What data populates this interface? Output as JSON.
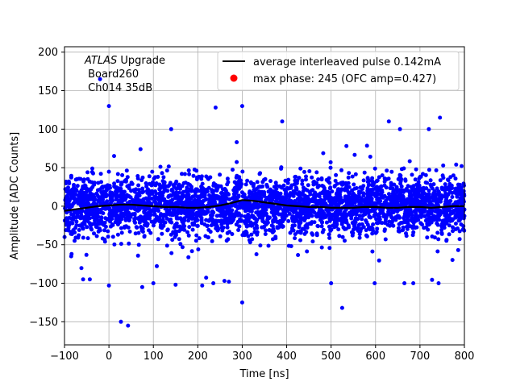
{
  "chart_data": {
    "type": "scatter",
    "xlabel": "Time [ns]",
    "ylabel": "Amplitude [ADC Counts]",
    "xlim": [
      -100,
      800
    ],
    "ylim": [
      -180,
      207
    ],
    "grid": true,
    "x_ticks": [
      -100,
      0,
      100,
      200,
      300,
      400,
      500,
      600,
      700,
      800
    ],
    "y_ticks": [
      -150,
      -100,
      -50,
      0,
      50,
      100,
      150,
      200
    ],
    "x_tick_labels": [
      "−100",
      "0",
      "100",
      "200",
      "300",
      "400",
      "500",
      "600",
      "700",
      "800"
    ],
    "y_tick_labels": [
      "−150",
      "−100",
      "−50",
      "0",
      "50",
      "100",
      "150",
      "200"
    ],
    "annotation": {
      "italic": "ATLAS",
      "rest": " Upgrade",
      "line2": " Board260",
      "line3": " Ch014 35dB"
    },
    "legend_position": "upper-right",
    "series": [
      {
        "name": "average interleaved pulse 0.142mA",
        "kind": "line",
        "color": "#000000",
        "x": [
          -100,
          -75,
          -50,
          -25,
          0,
          25,
          50,
          75,
          100,
          125,
          150,
          175,
          200,
          225,
          250,
          275,
          300,
          325,
          350,
          375,
          400,
          425,
          450,
          475,
          500,
          525,
          550,
          575,
          600,
          625,
          650,
          675,
          700,
          725,
          750,
          775,
          800
        ],
        "y": [
          -6,
          -4,
          -2,
          0,
          1,
          2,
          2,
          1,
          0,
          -1,
          -1,
          -2,
          -2,
          -1,
          1,
          4,
          8,
          7,
          5,
          3,
          1,
          0,
          -1,
          -1,
          -2,
          -2,
          -2,
          -1,
          -1,
          -2,
          -2,
          -1,
          -1,
          -2,
          -1,
          0,
          0
        ]
      },
      {
        "name": "max phase: 245 (OFC amp=0.427)",
        "kind": "scatter",
        "color": "#0000ff",
        "legend_color": "#ff0000",
        "description": "dense noise band, ~N(0, 18) clipped, with sparse outliers",
        "outliers": [
          [
            -20,
            165
          ],
          [
            0,
            130
          ],
          [
            27,
            -150
          ],
          [
            43,
            -155
          ],
          [
            -58,
            -95
          ],
          [
            -43,
            -95
          ],
          [
            0,
            -103
          ],
          [
            75,
            -105
          ],
          [
            210,
            -103
          ],
          [
            235,
            -100
          ],
          [
            300,
            -125
          ],
          [
            525,
            -132
          ],
          [
            598,
            -100
          ],
          [
            665,
            -100
          ],
          [
            685,
            -100
          ],
          [
            742,
            -100
          ],
          [
            -85,
            -65
          ],
          [
            240,
            128
          ],
          [
            300,
            130
          ],
          [
            390,
            110
          ],
          [
            630,
            110
          ],
          [
            745,
            115
          ],
          [
            655,
            100
          ],
          [
            720,
            100
          ],
          [
            140,
            100
          ],
          [
            260,
            -97
          ],
          [
            270,
            -98
          ],
          [
            150,
            -102
          ],
          [
            100,
            -100
          ],
          [
            500,
            -100
          ]
        ]
      }
    ]
  }
}
